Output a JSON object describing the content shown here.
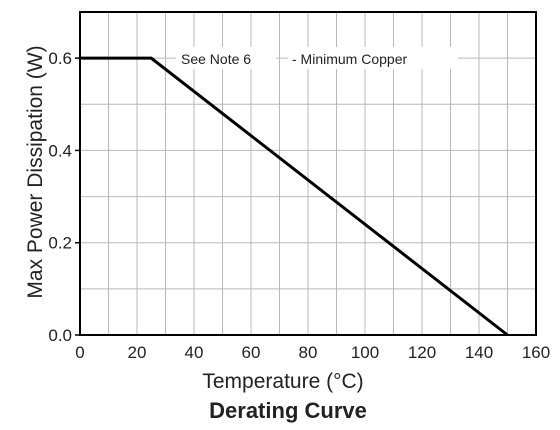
{
  "chart_data": {
    "type": "line",
    "title": "Derating Curve",
    "xlabel": "Temperature (°C)",
    "ylabel": "Max Power Dissipation (W)",
    "xlim": [
      0,
      160
    ],
    "ylim": [
      0,
      0.7
    ],
    "x_ticks": [
      "0",
      "20",
      "40",
      "60",
      "80",
      "100",
      "120",
      "140",
      "160"
    ],
    "y_ticks": [
      "0.0",
      "0.2",
      "0.4",
      "0.6"
    ],
    "x_tick_values": [
      0,
      20,
      40,
      60,
      80,
      100,
      120,
      140,
      160
    ],
    "y_tick_values": [
      0,
      0.2,
      0.4,
      0.6
    ],
    "grid": true,
    "annotations": [
      "See Note 6",
      "- Minimum Copper"
    ],
    "series": [
      {
        "name": "",
        "x": [
          0,
          25,
          150
        ],
        "y": [
          0.6,
          0.6,
          0.0
        ]
      }
    ],
    "colors": {
      "line": "#000000",
      "grid": "#b8b8b8",
      "frame": "#000000"
    }
  }
}
